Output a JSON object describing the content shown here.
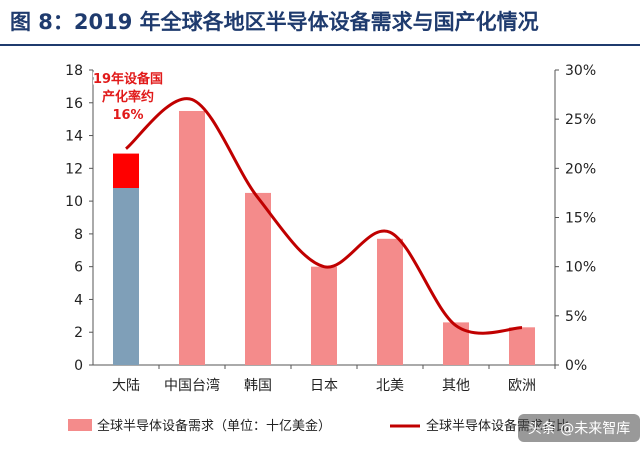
{
  "title": "图 8：2019 年全球各地区半导体设备需求与国产化情况",
  "chart_data": {
    "type": "bar",
    "categories": [
      "大陆",
      "中国台湾",
      "韩国",
      "日本",
      "北美",
      "其他",
      "欧洲"
    ],
    "series": [
      {
        "name": "全球半导体设备需求（单位：十亿美金）",
        "type": "bar",
        "axis": "left",
        "values": [
          12.9,
          15.5,
          10.5,
          6.0,
          7.7,
          2.6,
          2.3
        ],
        "color": "#f48b8b"
      },
      {
        "name": "全球半导体设备需求占比",
        "type": "line",
        "axis": "right",
        "values": [
          22,
          27,
          17,
          10,
          13.5,
          4,
          3.8
        ],
        "color": "#c00000"
      }
    ],
    "mainland_localized": {
      "base": 10.8,
      "localized": 2.1,
      "base_color": "#7f9fb8",
      "localized_color": "#ff0000"
    },
    "left_axis": {
      "ylim": [
        0,
        18
      ],
      "ticks": [
        "0",
        "2",
        "4",
        "6",
        "8",
        "10",
        "12",
        "14",
        "16",
        "18"
      ]
    },
    "right_axis": {
      "ylim": [
        0,
        30
      ],
      "ticks": [
        "0%",
        "5%",
        "10%",
        "15%",
        "20%",
        "25%",
        "30%"
      ]
    },
    "annotation": [
      "19年设备国",
      "产化率约",
      "16%"
    ],
    "legend": {
      "bar_label": "全球半导体设备需求（单位：十亿美金）",
      "line_label": "全球半导体设备需求占比"
    },
    "legend_placement": "bottom",
    "grid": false
  },
  "watermark": "头条 @未来智库"
}
